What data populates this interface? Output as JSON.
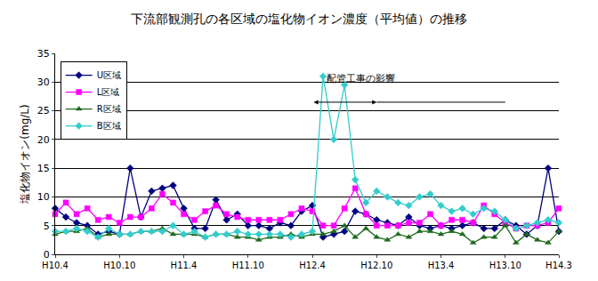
{
  "chart_data": {
    "type": "line",
    "title": "下流部観測孔の各区域の塩化物イオン濃度（平均値）の推移",
    "y_label": "塩化物イオン(mg/L)",
    "annotation": "配管工事の影響",
    "categories": [
      "H10.4",
      null,
      null,
      null,
      null,
      null,
      "H10.10",
      null,
      null,
      null,
      null,
      null,
      "H11.4",
      null,
      null,
      null,
      null,
      null,
      "H11.10",
      null,
      null,
      null,
      null,
      null,
      "H12.4",
      null,
      null,
      null,
      null,
      null,
      "H12.10",
      null,
      null,
      null,
      null,
      null,
      "H13.4",
      null,
      null,
      null,
      null,
      null,
      "H13.10",
      null,
      null,
      null,
      null,
      "H14.3"
    ],
    "series": [
      {
        "name": "U区域",
        "color": "#000080",
        "marker": "diamond",
        "line_style": "solid",
        "values": [
          8,
          6.5,
          5.5,
          5,
          3.5,
          4,
          3.5,
          15,
          6.5,
          11,
          11.5,
          12,
          8,
          4.5,
          4.5,
          9.5,
          6,
          7,
          5,
          5,
          4.5,
          5.5,
          5,
          7.5,
          8.5,
          3,
          3.5,
          4,
          7.5,
          7,
          6,
          5.5,
          5,
          6.5,
          5,
          4.5,
          5,
          4.5,
          5,
          5.5,
          4.5,
          4.5,
          6,
          5,
          3.5,
          5,
          15,
          4
        ]
      },
      {
        "name": "L区域",
        "color": "#ff00ff",
        "marker": "square",
        "line_style": "solid",
        "values": [
          7,
          9,
          7,
          8,
          6,
          6.5,
          5.5,
          6.5,
          6.5,
          8,
          10.5,
          9,
          7,
          6,
          7.5,
          8.5,
          7,
          6.5,
          6,
          6,
          6,
          6,
          7,
          8,
          7.5,
          5,
          5,
          8,
          11.5,
          7,
          5,
          5,
          5,
          5.5,
          5.5,
          7,
          5,
          6,
          6,
          5.5,
          8.5,
          7,
          5.5,
          4.5,
          5,
          5,
          5.5,
          8
        ]
      },
      {
        "name": "R区域",
        "color": "#1e6b1e",
        "marker": "triangle-up",
        "line_style": "solid",
        "values": [
          3.5,
          4,
          4,
          4.5,
          3,
          3.5,
          3.5,
          3.5,
          4,
          4,
          4.5,
          3.5,
          3.5,
          3.5,
          3,
          3.5,
          3.5,
          3,
          3,
          2.5,
          3,
          3,
          3.5,
          3,
          3.5,
          3.5,
          4,
          5,
          3,
          4.5,
          3,
          2.5,
          3.5,
          3,
          4,
          4,
          3.5,
          4,
          3.5,
          2,
          3,
          3,
          5,
          2,
          3.5,
          2.5,
          2,
          4
        ]
      },
      {
        "name": "B区域",
        "color": "#33cccc",
        "marker": "diamond",
        "line_style": "solid",
        "values": [
          4,
          4,
          4.5,
          4,
          3,
          4.5,
          3.5,
          3.5,
          4,
          4,
          4,
          5,
          3.5,
          4,
          3,
          3.5,
          3.5,
          4,
          3.5,
          3.5,
          3.5,
          3.5,
          3,
          3.5,
          4,
          31,
          20,
          29.5,
          13,
          9,
          11,
          10,
          9,
          8.5,
          10,
          10.5,
          8.5,
          7.5,
          8,
          7,
          8,
          7.5,
          6,
          4.5,
          5,
          5.5,
          6,
          5.5
        ]
      }
    ],
    "ylim": [
      0,
      35
    ],
    "yticks": [
      0,
      5,
      10,
      15,
      20,
      25,
      30,
      35
    ],
    "grid": true,
    "legend": "upper left"
  }
}
